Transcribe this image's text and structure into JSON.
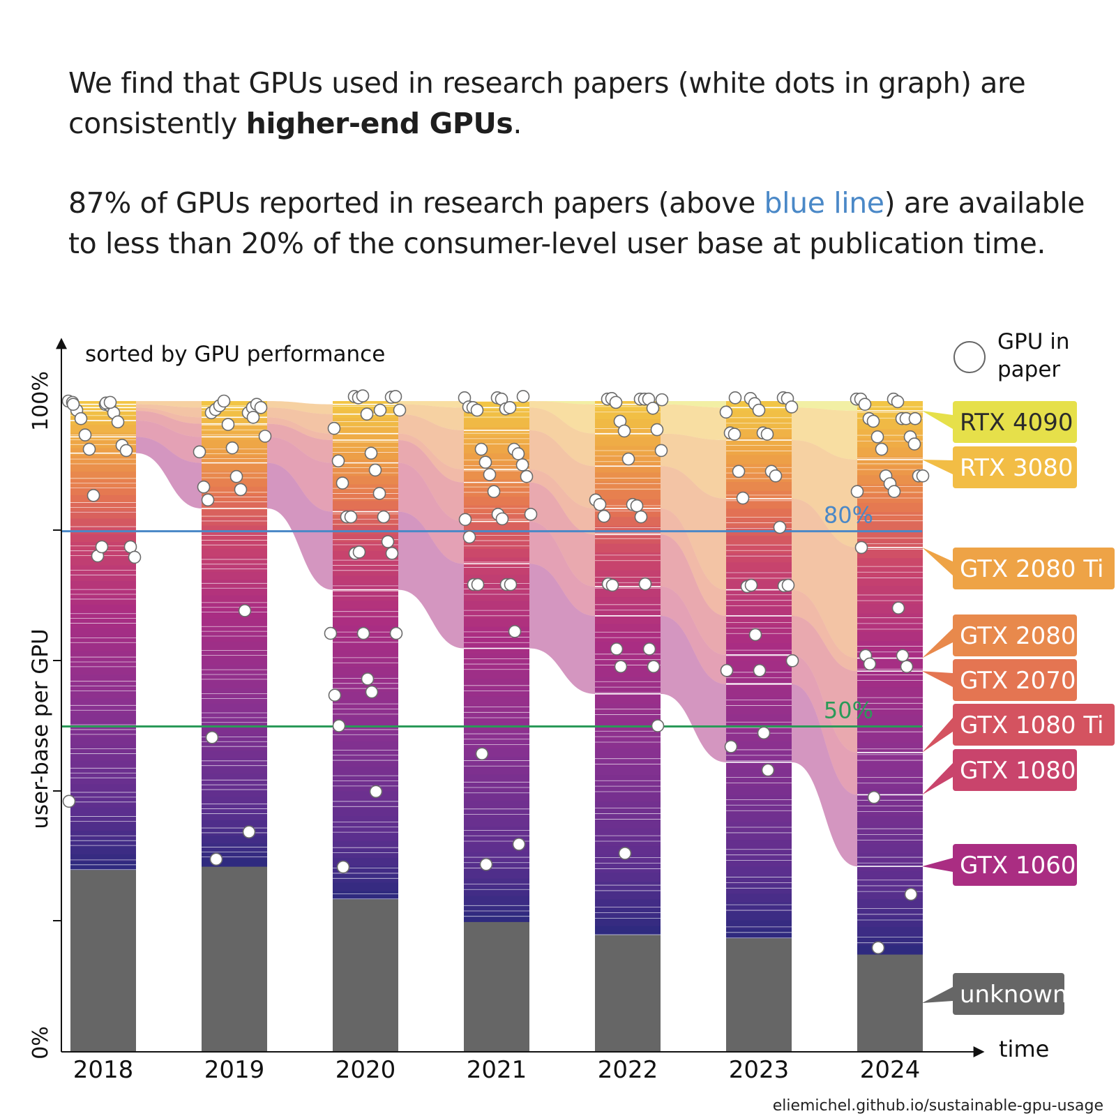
{
  "intro": {
    "p1_a": "We find that GPUs used in research papers (white dots in graph) are consistently ",
    "p1_bold": "higher-end GPUs",
    "p1_end": ".",
    "p2_a": "87% of GPUs reported in research papers (above ",
    "p2_blue": "blue line",
    "p2_b": ") are available to less than 20% of the consumer-level user base at publication time."
  },
  "footer": {
    "source": "eliemichel.github.io/sustainable-gpu-usage"
  },
  "chart_data": {
    "type": "bar",
    "subtype": "stacked-bar-with-flows",
    "title": "sorted by GPU performance",
    "xlabel": "time",
    "ylabel": "user-base per GPU",
    "ytick_labels": [
      "0%",
      "100%"
    ],
    "ylim": [
      0,
      100
    ],
    "categories": [
      "2018",
      "2019",
      "2020",
      "2021",
      "2022",
      "2023",
      "2024"
    ],
    "legend": {
      "label": "GPU in paper",
      "placement": "top-right",
      "marker": "white circle"
    },
    "reference_lines": [
      {
        "label": "80%",
        "value": 80,
        "color": "#4a88c7"
      },
      {
        "label": "50%",
        "value": 50,
        "color": "#2a9a58"
      }
    ],
    "unknown_share": [
      28,
      28.5,
      23.5,
      20,
      18,
      17.5,
      15
    ],
    "gpu_series": [
      {
        "name": "RTX 4090",
        "color": "#e6e04a",
        "text_color": "#2b2b2b",
        "lower_edge": [
          null,
          null,
          null,
          100,
          99.5,
          99,
          98.5
        ]
      },
      {
        "name": "RTX 3080",
        "color": "#f2bd45",
        "text_color": "#ffffff",
        "lower_edge": [
          null,
          null,
          99.5,
          99,
          95,
          94,
          91
        ]
      },
      {
        "name": "GTX 2080 Ti",
        "color": "#eea346",
        "text_color": "#ffffff",
        "lower_edge": [
          99.5,
          99,
          98,
          95.5,
          90,
          85,
          77.5
        ]
      },
      {
        "name": "GTX 2080",
        "color": "#e8894c",
        "text_color": "#ffffff",
        "lower_edge": [
          99,
          97.5,
          95,
          89.5,
          83.5,
          71,
          60.5
        ]
      },
      {
        "name": "GTX 2070",
        "color": "#e47552",
        "text_color": "#ffffff",
        "lower_edge": [
          98.5,
          96.5,
          94,
          87.5,
          79.5,
          67,
          58.5
        ]
      },
      {
        "name": "GTX 1080 Ti",
        "color": "#d45360",
        "text_color": "#ffffff",
        "lower_edge": [
          97,
          94.5,
          90.5,
          81.5,
          71.5,
          61,
          46
        ]
      },
      {
        "name": "GTX 1080",
        "color": "#c9446c",
        "text_color": "#ffffff",
        "lower_edge": [
          94.5,
          90.5,
          83,
          75,
          67,
          56.5,
          39.5
        ]
      },
      {
        "name": "GTX 1060",
        "color": "#aa2d82",
        "text_color": "#ffffff",
        "lower_edge": [
          92,
          83.5,
          71,
          62,
          55,
          44.5,
          28.5
        ]
      },
      {
        "name": "unknown",
        "color": "#666666",
        "text_color": "#ffffff",
        "lower_edge": [
          0,
          0,
          0,
          0,
          0,
          0,
          0
        ]
      }
    ],
    "papers_gpu_user_base_percentile": [
      [
        100,
        99.5,
        99.8,
        99.3,
        98.6,
        98.2,
        97.3,
        96.8,
        94.8,
        93.2,
        92.6,
        92.4,
        85.5,
        77.6,
        76.2,
        76,
        77.6,
        38.5,
        99.7,
        99.5,
        99.8
      ],
      [
        98.2,
        98.2,
        98.7,
        99,
        99.3,
        99.5,
        100,
        99,
        96.4,
        94.6,
        92.8,
        92.2,
        88.4,
        86.8,
        86.4,
        84.8,
        67.8,
        48.3,
        33.8,
        29.6,
        97.5
      ],
      [
        100.7,
        100.6,
        100.5,
        100.7,
        100.8,
        98.6,
        98,
        95.8,
        92,
        90.8,
        89.4,
        87.4,
        85.8,
        82.2,
        82.2,
        82.2,
        78.4,
        76.6,
        76.6,
        76.8,
        64.3,
        64.3,
        64.3,
        57.3,
        54.8,
        55.3,
        50.1,
        40,
        28.4,
        98.6
      ],
      [
        100.5,
        100.5,
        100.3,
        99.1,
        98.8,
        99,
        99,
        98.6,
        92.6,
        92.6,
        91.9,
        90.6,
        90.2,
        88.7,
        88.4,
        86.1,
        82.6,
        82.6,
        81.8,
        81.9,
        79.1,
        71.8,
        71.8,
        71.8,
        71.8,
        64.6,
        45.8,
        31.9,
        28.8,
        100.7
      ],
      [
        100.3,
        100.3,
        100.3,
        100.4,
        100.3,
        99.8,
        98.9,
        96.9,
        95.6,
        95.4,
        92.4,
        91.1,
        84.8,
        84.1,
        84.1,
        83.9,
        82.3,
        82.2,
        71.9,
        71.9,
        71.7,
        61.9,
        61.9,
        59.2,
        59.2,
        50.1,
        30.5,
        100.2
      ],
      [
        100.5,
        100.4,
        100.4,
        99.6,
        99.1,
        98.6,
        98.3,
        95.1,
        95.1,
        94.9,
        94.9,
        89.2,
        89.2,
        88.5,
        85.1,
        80.6,
        71.5,
        71.6,
        71.7,
        71.7,
        64.1,
        60.1,
        58.6,
        58.6,
        49,
        46.9,
        43.3,
        100.5
      ],
      [
        100.3,
        100.3,
        100.3,
        99.9,
        99.5,
        97.3,
        97.3,
        97.3,
        96.9,
        94.5,
        94.5,
        93.4,
        92.6,
        88.5,
        88.5,
        88.5,
        87.3,
        86.1,
        86.1,
        77.5,
        68.2,
        60.9,
        60.9,
        59.6,
        59.2,
        39.1,
        24.2,
        16,
        97.3
      ]
    ]
  }
}
